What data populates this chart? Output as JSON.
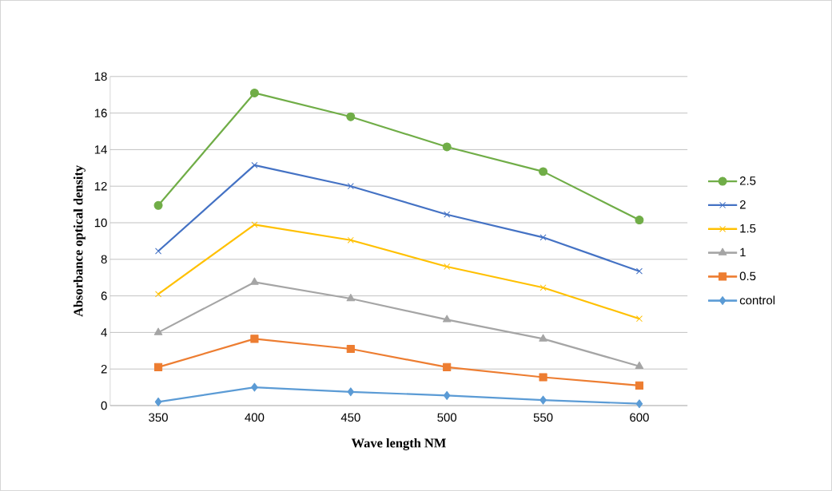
{
  "chart_data": {
    "type": "line",
    "xlabel": "Wave length NM",
    "ylabel": "Absorbance optical density",
    "categories": [
      "350",
      "400",
      "450",
      "500",
      "550",
      "600"
    ],
    "ylim": [
      0,
      18
    ],
    "yticks": [
      0,
      2,
      4,
      6,
      8,
      10,
      12,
      14,
      16,
      18
    ],
    "grid": "y",
    "legend": "right",
    "line_style": "solid",
    "series": [
      {
        "name": "2.5",
        "color": "#70ad47",
        "marker": "circle",
        "values": [
          10.95,
          17.1,
          15.8,
          14.15,
          12.8,
          10.15
        ]
      },
      {
        "name": "2",
        "color": "#4472c4",
        "marker": "cross",
        "values": [
          8.45,
          13.15,
          12.0,
          10.45,
          9.2,
          7.35
        ]
      },
      {
        "name": "1.5",
        "color": "#ffc000",
        "marker": "cross",
        "values": [
          6.1,
          9.9,
          9.05,
          7.6,
          6.45,
          4.75
        ]
      },
      {
        "name": "1",
        "color": "#a5a5a5",
        "marker": "triangle",
        "values": [
          4.0,
          6.75,
          5.85,
          4.7,
          3.65,
          2.15
        ]
      },
      {
        "name": "0.5",
        "color": "#ed7d31",
        "marker": "square",
        "values": [
          2.1,
          3.65,
          3.1,
          2.1,
          1.55,
          1.1
        ]
      },
      {
        "name": "control",
        "color": "#5b9bd5",
        "marker": "diamond",
        "values": [
          0.2,
          1.0,
          0.75,
          0.55,
          0.3,
          0.1
        ]
      }
    ]
  }
}
